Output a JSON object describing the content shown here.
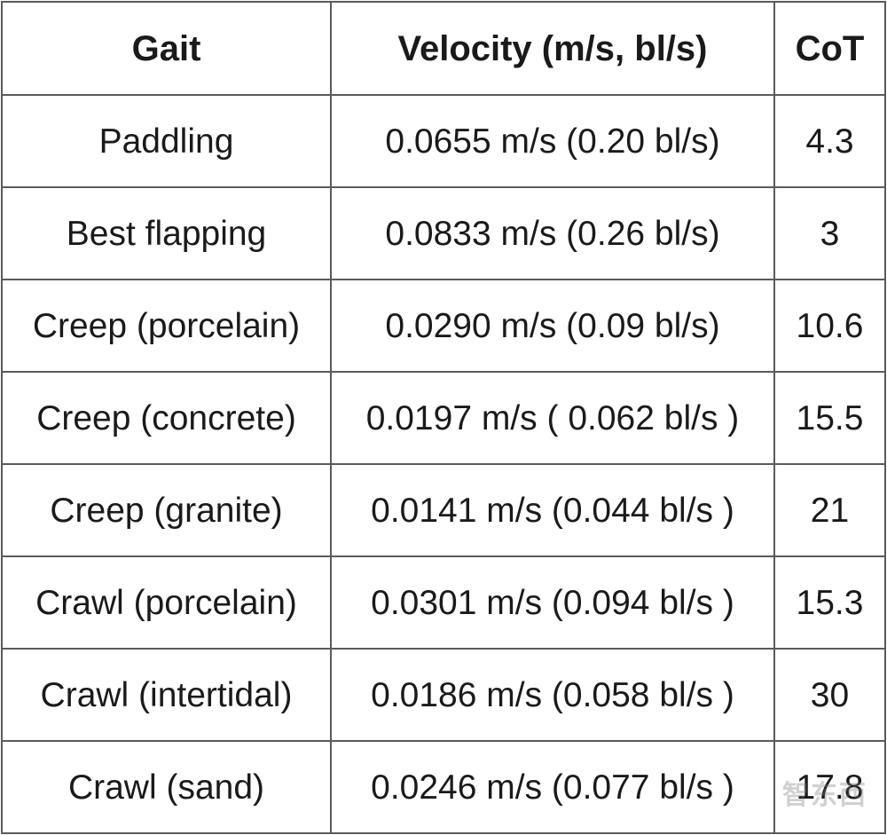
{
  "table": {
    "headers": [
      "Gait",
      "Velocity (m/s, bl/s)",
      "CoT"
    ],
    "rows": [
      {
        "gait": "Paddling",
        "velocity": "0.0655 m/s (0.20  bl/s)",
        "cot": "4.3"
      },
      {
        "gait": "Best flapping",
        "velocity": "0.0833 m/s (0.26 bl/s)",
        "cot": "3"
      },
      {
        "gait": "Creep (porcelain)",
        "velocity": "0.0290 m/s (0.09 bl/s)",
        "cot": "10.6"
      },
      {
        "gait": "Creep (concrete)",
        "velocity": "0.0197 m/s ( 0.062 bl/s )",
        "cot": "15.5"
      },
      {
        "gait": "Creep (granite)",
        "velocity": "0.0141 m/s (0.044  bl/s )",
        "cot": "21"
      },
      {
        "gait": "Crawl (porcelain)",
        "velocity": "0.0301 m/s (0.094 bl/s )",
        "cot": "15.3"
      },
      {
        "gait": "Crawl (intertidal)",
        "velocity": "0.0186 m/s (0.058 bl/s )",
        "cot": "30"
      },
      {
        "gait": "Crawl (sand)",
        "velocity": "0.0246 m/s (0.077 bl/s )",
        "cot": "17.8"
      }
    ]
  },
  "watermark": "智东西"
}
